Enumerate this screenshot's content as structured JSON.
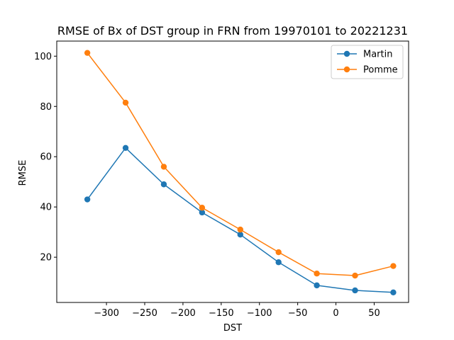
{
  "chart_data": {
    "type": "line",
    "title": "RMSE of Bx of DST group in FRN from 19970101 to 20221231",
    "xlabel": "DST",
    "ylabel": "RMSE",
    "x": [
      -325,
      -275,
      -225,
      -175,
      -125,
      -75,
      -25,
      25,
      75
    ],
    "xlim": [
      -365,
      95
    ],
    "ylim": [
      2,
      106
    ],
    "xticks": [
      -300,
      -250,
      -200,
      -150,
      -100,
      -50,
      0,
      50
    ],
    "xtick_labels": [
      "−300",
      "−250",
      "−200",
      "−150",
      "−100",
      "−50",
      "0",
      "50"
    ],
    "yticks": [
      20,
      40,
      60,
      80,
      100
    ],
    "ytick_labels": [
      "20",
      "40",
      "60",
      "80",
      "100"
    ],
    "grid": false,
    "legend_position": "top-right",
    "series": [
      {
        "name": "Martin",
        "color": "#1f77b4",
        "values": [
          43.0,
          63.5,
          49.0,
          37.8,
          29.0,
          18.0,
          8.8,
          6.8,
          6.0
        ]
      },
      {
        "name": "Pomme",
        "color": "#ff7f0e",
        "values": [
          101.3,
          81.5,
          56.0,
          39.7,
          31.0,
          22.0,
          13.5,
          12.7,
          16.5
        ]
      }
    ]
  }
}
